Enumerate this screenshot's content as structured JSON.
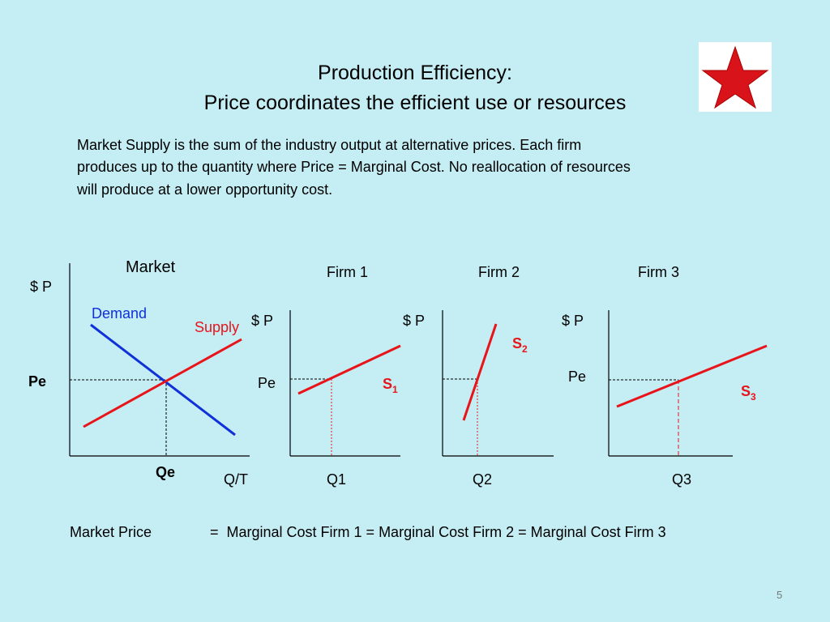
{
  "header": {
    "title_lines": [
      "Production Efficiency:",
      "Price coordinates the efficient use or resources"
    ]
  },
  "body": {
    "lines": [
      "Market Supply is the sum of the industry output at alternative prices. Each firm",
      "produces up to the quantity where Price = Marginal Cost. No reallocation of resources",
      "will produce at a lower opportunity cost."
    ]
  },
  "market": {
    "title": "Market",
    "y_label": "$ P",
    "demand": "Demand",
    "supply": "Supply",
    "price": "Pe",
    "quantity": "Qe",
    "x_label": "Q/T"
  },
  "firms": [
    {
      "title": "Firm 1",
      "y_label": "$ P",
      "price": "Pe",
      "supply": {
        "letter": "S",
        "sub": "1"
      },
      "quantity": "Q1"
    },
    {
      "title": "Firm 2",
      "y_label": "$ P",
      "supply": {
        "letter": "S",
        "sub": "2"
      },
      "quantity": "Q2"
    },
    {
      "title": "Firm 3",
      "y_label": "$ P",
      "price": "Pe",
      "supply": {
        "letter": "S",
        "sub": "3"
      },
      "quantity": "Q3"
    }
  ],
  "footer": {
    "left": "Market Price",
    "right": "=  Marginal Cost Firm 1 = Marginal Cost Firm 2 = Marginal Cost Firm 3"
  },
  "page_number": 5
}
